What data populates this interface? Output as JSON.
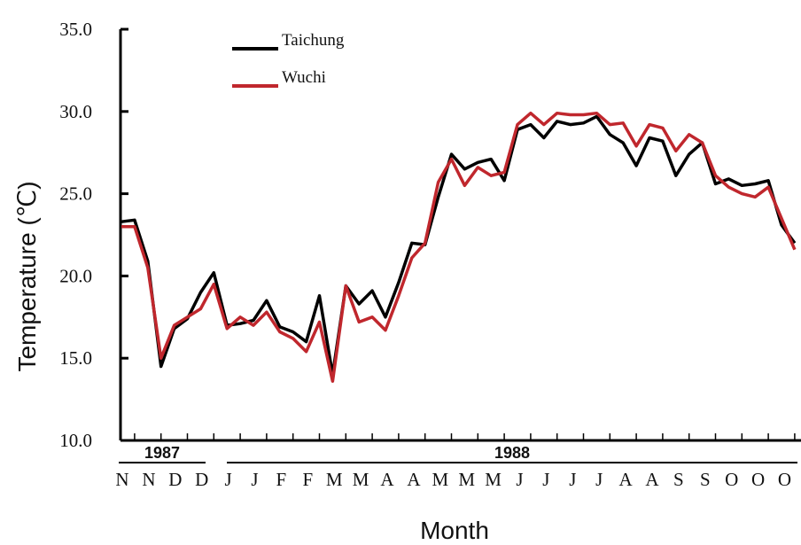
{
  "chart_data": {
    "type": "line",
    "xlabel": "Month",
    "ylabel": "Temperature (℃)",
    "ylim": [
      10.0,
      35.0
    ],
    "yticks": [
      "10.0",
      "15.0",
      "20.0",
      "25.0",
      "30.0",
      "35.0"
    ],
    "grid": false,
    "legend_position": "top-left",
    "year_groups": [
      {
        "label": "1987",
        "start": 0,
        "end": 3
      },
      {
        "label": "1988",
        "start": 4,
        "end": 30
      }
    ],
    "month_labels": [
      "N",
      "N",
      "D",
      "D",
      "J",
      "J",
      "F",
      "F",
      "M",
      "M",
      "A",
      "A",
      "M",
      "M",
      "M",
      "J",
      "J",
      "J",
      "J",
      "A",
      "A",
      "S",
      "S",
      "O",
      "O",
      "O"
    ],
    "series": [
      {
        "name": "Taichung",
        "color": "#000000",
        "values": [
          23.3,
          23.4,
          20.9,
          14.5,
          16.8,
          17.4,
          19.0,
          20.2,
          17.0,
          17.1,
          17.3,
          18.5,
          16.9,
          16.6,
          16.0,
          18.8,
          14.0,
          19.4,
          18.3,
          19.1,
          17.5,
          19.6,
          22.0,
          21.9,
          24.8,
          27.4,
          26.5,
          26.9,
          27.1,
          25.8,
          28.9,
          29.2,
          28.4,
          29.4,
          29.2,
          29.3,
          29.7,
          28.6,
          28.1,
          26.7,
          28.4,
          28.2,
          26.1,
          27.4,
          28.1,
          25.6,
          25.9,
          25.5,
          25.6,
          25.8,
          23.1,
          22.0
        ]
      },
      {
        "name": "Wuchi",
        "color": "#c0272d",
        "values": [
          23.0,
          23.0,
          20.5,
          15.0,
          17.0,
          17.5,
          18.0,
          19.5,
          16.8,
          17.5,
          17.0,
          17.8,
          16.6,
          16.2,
          15.4,
          17.2,
          13.6,
          19.4,
          17.2,
          17.5,
          16.7,
          18.8,
          21.1,
          22.0,
          25.7,
          27.1,
          25.5,
          26.6,
          26.1,
          26.3,
          29.2,
          29.9,
          29.2,
          29.9,
          29.8,
          29.8,
          29.9,
          29.2,
          29.3,
          27.9,
          29.2,
          29.0,
          27.6,
          28.6,
          28.1,
          26.1,
          25.4,
          25.0,
          24.8,
          25.4,
          23.5,
          21.6
        ]
      }
    ]
  }
}
